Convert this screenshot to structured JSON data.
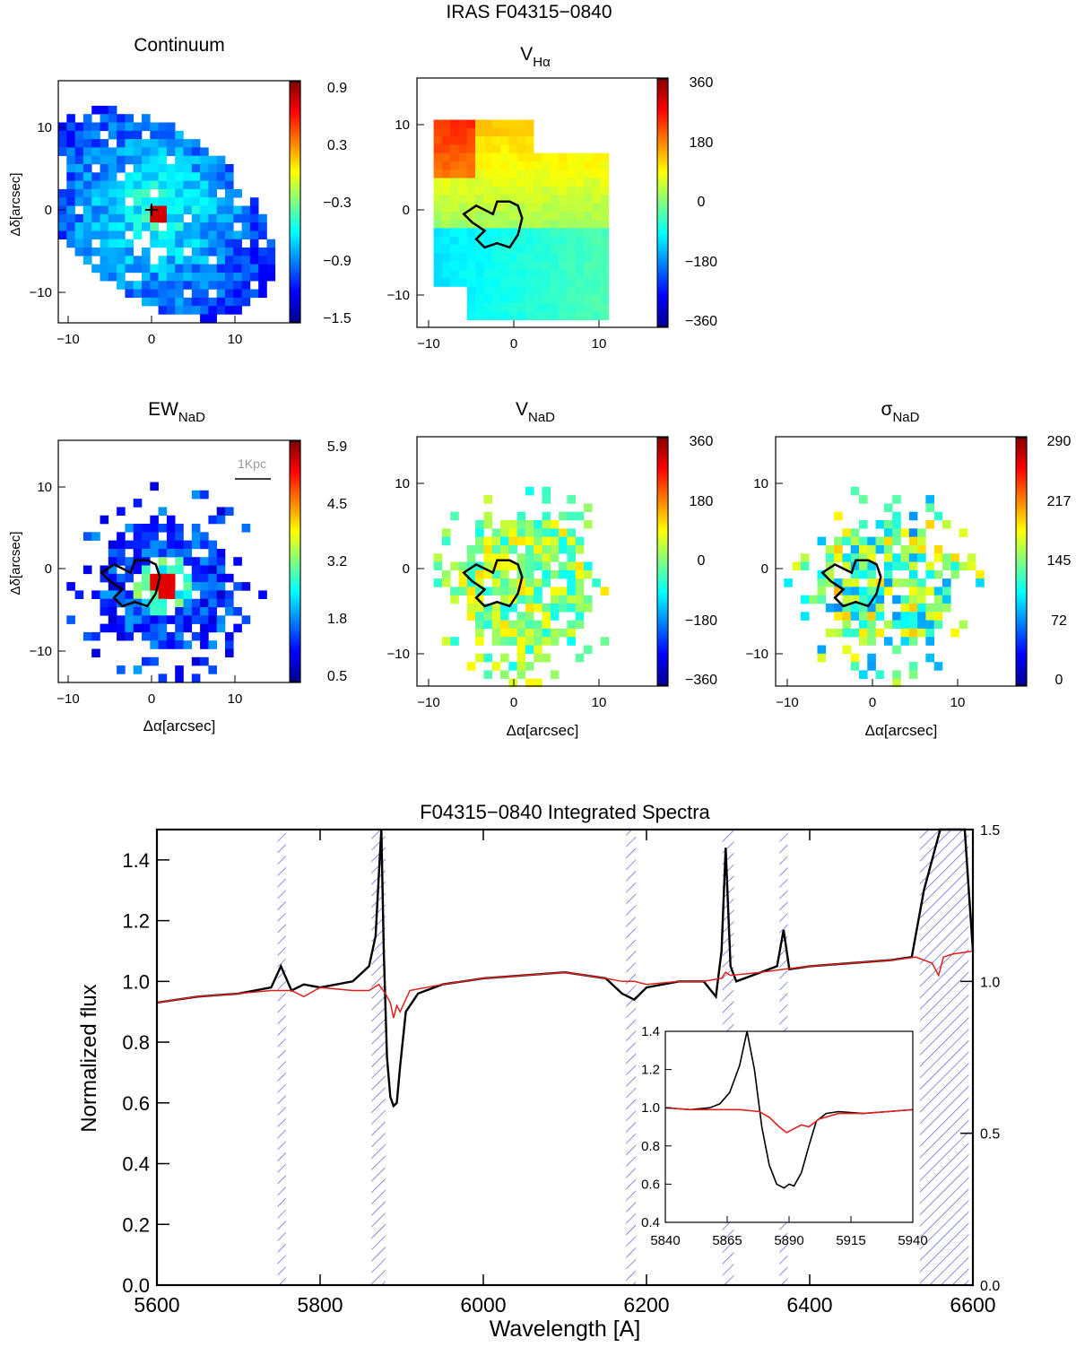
{
  "figure_title": "IRAS F04315−0840",
  "maps": [
    {
      "id": "continuum",
      "title": "Continuum",
      "title_sub": "",
      "symbol": "",
      "colorbar_ticks": [
        "0.9",
        "0.3",
        "−0.3",
        "−0.9",
        "−1.5"
      ],
      "x_ticks": [
        "−10",
        "0",
        "10"
      ],
      "y_ticks": [
        "10",
        "0",
        "−10"
      ],
      "xlabel": "",
      "ylabel": "Δδ[arcsec]",
      "contour": false,
      "scalebar": ""
    },
    {
      "id": "v_halpha",
      "title": "V",
      "title_sub": "Hα",
      "symbol": "",
      "colorbar_ticks": [
        "360",
        "180",
        "0",
        "−180",
        "−360"
      ],
      "x_ticks": [
        "−10",
        "0",
        "10"
      ],
      "y_ticks": [
        "10",
        "0",
        "−10"
      ],
      "xlabel": "",
      "ylabel": "",
      "contour": true,
      "scalebar": ""
    },
    {
      "id": "ew_nad",
      "title": "EW",
      "title_sub": "NaD",
      "symbol": "",
      "colorbar_ticks": [
        "5.9",
        "4.5",
        "3.2",
        "1.8",
        "0.5"
      ],
      "x_ticks": [
        "−10",
        "0",
        "10"
      ],
      "y_ticks": [
        "10",
        "0",
        "−10"
      ],
      "xlabel": "Δα[arcsec]",
      "ylabel": "Δδ[arcsec]",
      "contour": true,
      "scalebar": "1Kpc"
    },
    {
      "id": "v_nad",
      "title": "V",
      "title_sub": "NaD",
      "symbol": "",
      "colorbar_ticks": [
        "360",
        "180",
        "0",
        "−180",
        "−360"
      ],
      "x_ticks": [
        "−10",
        "0",
        "10"
      ],
      "y_ticks": [
        "10",
        "0",
        "−10"
      ],
      "xlabel": "Δα[arcsec]",
      "ylabel": "",
      "contour": true,
      "scalebar": ""
    },
    {
      "id": "sigma_nad",
      "title": "σ",
      "title_sub": "NaD",
      "symbol": "",
      "colorbar_ticks": [
        "290",
        "217",
        "145",
        "72",
        "0"
      ],
      "x_ticks": [
        "−10",
        "0",
        "10"
      ],
      "y_ticks": [
        "10",
        "0",
        "−10"
      ],
      "xlabel": "Δα[arcsec]",
      "ylabel": "",
      "contour": true,
      "scalebar": ""
    }
  ],
  "chart_data": {
    "type": "line",
    "title": "F04315−0840 Integrated Spectra",
    "xlabel": "Wavelength [A]",
    "ylabel": "Normalized flux",
    "xlim": [
      5600,
      6600
    ],
    "ylim": [
      0.0,
      1.5
    ],
    "x_ticks": [
      "5600",
      "5800",
      "6000",
      "6200",
      "6400",
      "6600"
    ],
    "y_ticks": [
      "0.0",
      "0.2",
      "0.4",
      "0.6",
      "0.8",
      "1.0",
      "1.2",
      "1.4"
    ],
    "right_axis_ticks": [
      "0.0",
      "0.5",
      "1.0",
      "1.5"
    ],
    "masked_regions": [
      [
        5748,
        5758
      ],
      [
        5863,
        5880
      ],
      [
        6175,
        6187
      ],
      [
        6293,
        6307
      ],
      [
        6363,
        6373
      ],
      [
        6535,
        6595
      ]
    ],
    "series": [
      {
        "name": "observed",
        "color": "#000000",
        "x": [
          5600,
          5650,
          5700,
          5740,
          5752,
          5765,
          5780,
          5800,
          5840,
          5860,
          5868,
          5872,
          5875,
          5878,
          5882,
          5886,
          5890,
          5894,
          5898,
          5905,
          5920,
          5950,
          6000,
          6050,
          6100,
          6150,
          6170,
          6185,
          6200,
          6240,
          6270,
          6285,
          6292,
          6297,
          6303,
          6310,
          6340,
          6360,
          6368,
          6375,
          6400,
          6450,
          6500,
          6525,
          6540,
          6560,
          6570,
          6590,
          6600
        ],
        "y": [
          0.93,
          0.95,
          0.96,
          0.98,
          1.05,
          0.97,
          0.99,
          0.98,
          1.0,
          1.05,
          1.15,
          1.35,
          1.5,
          1.1,
          0.75,
          0.62,
          0.59,
          0.6,
          0.72,
          0.9,
          0.96,
          0.99,
          1.01,
          1.02,
          1.03,
          1.01,
          0.96,
          0.94,
          0.98,
          1.0,
          1.0,
          0.95,
          1.1,
          1.44,
          1.05,
          1.0,
          1.03,
          1.05,
          1.17,
          1.04,
          1.05,
          1.06,
          1.07,
          1.08,
          1.3,
          1.5,
          1.5,
          1.5,
          1.1
        ]
      },
      {
        "name": "model",
        "color": "#e0201c",
        "x": [
          5600,
          5650,
          5700,
          5740,
          5765,
          5780,
          5800,
          5840,
          5860,
          5872,
          5880,
          5886,
          5890,
          5894,
          5898,
          5910,
          5950,
          6000,
          6050,
          6100,
          6150,
          6170,
          6185,
          6200,
          6240,
          6270,
          6292,
          6297,
          6303,
          6340,
          6368,
          6400,
          6450,
          6500,
          6530,
          6550,
          6558,
          6564,
          6575,
          6600
        ],
        "y": [
          0.93,
          0.95,
          0.96,
          0.97,
          0.97,
          0.95,
          0.98,
          0.97,
          0.97,
          0.99,
          0.96,
          0.93,
          0.88,
          0.92,
          0.9,
          0.97,
          0.99,
          1.01,
          1.02,
          1.03,
          1.01,
          1.0,
          1.0,
          0.99,
          1.0,
          1.0,
          1.01,
          1.03,
          1.02,
          1.03,
          1.04,
          1.05,
          1.06,
          1.07,
          1.08,
          1.06,
          1.02,
          1.08,
          1.09,
          1.1
        ]
      }
    ],
    "inset": {
      "xlim": [
        5840,
        5940
      ],
      "ylim": [
        0.4,
        1.4
      ],
      "x_ticks": [
        "5840",
        "5865",
        "5890",
        "5915",
        "5940"
      ],
      "y_ticks": [
        "0.4",
        "0.6",
        "0.8",
        "1.0",
        "1.2",
        "1.4"
      ],
      "series": [
        {
          "name": "observed",
          "color": "#000000",
          "x": [
            5840,
            5850,
            5858,
            5862,
            5866,
            5870,
            5873,
            5876,
            5879,
            5882,
            5885,
            5888,
            5890,
            5892,
            5895,
            5898,
            5901,
            5905,
            5910,
            5920,
            5930,
            5940
          ],
          "y": [
            1.0,
            0.99,
            1.0,
            1.02,
            1.08,
            1.22,
            1.45,
            1.2,
            0.9,
            0.7,
            0.6,
            0.58,
            0.6,
            0.59,
            0.66,
            0.8,
            0.93,
            0.97,
            0.98,
            0.97,
            0.98,
            0.99
          ]
        },
        {
          "name": "model",
          "color": "#e0201c",
          "x": [
            5840,
            5850,
            5860,
            5870,
            5878,
            5882,
            5886,
            5889,
            5892,
            5895,
            5898,
            5902,
            5910,
            5920,
            5930,
            5940
          ],
          "y": [
            1.0,
            0.99,
            0.99,
            0.99,
            0.98,
            0.95,
            0.9,
            0.87,
            0.89,
            0.91,
            0.9,
            0.94,
            0.97,
            0.97,
            0.98,
            0.99
          ]
        }
      ]
    }
  }
}
